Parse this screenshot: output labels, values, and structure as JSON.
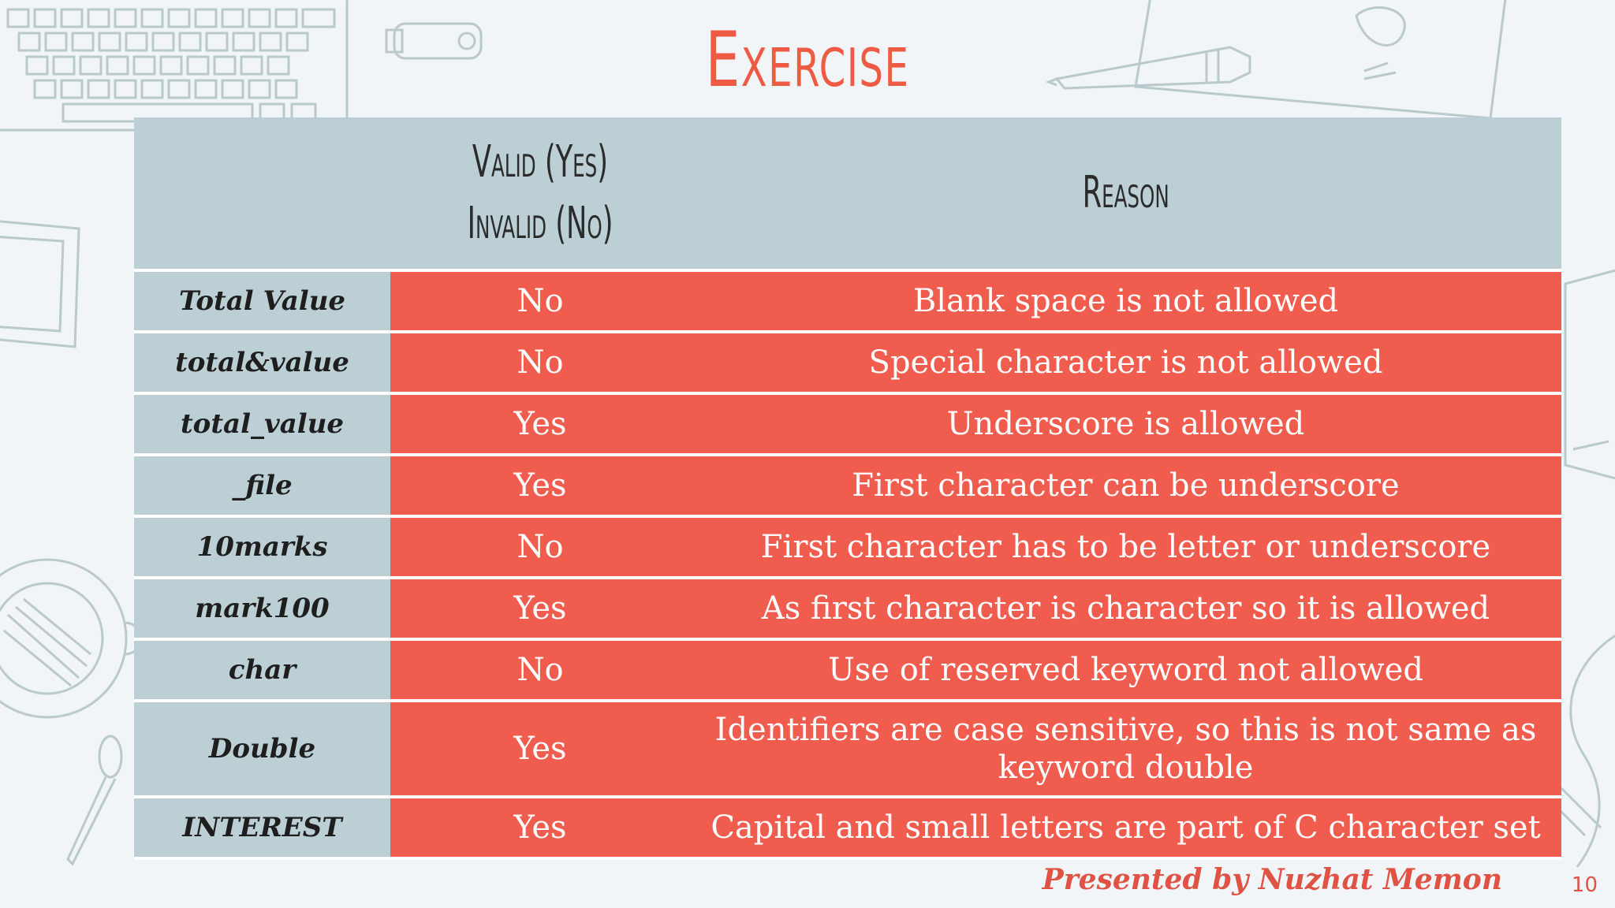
{
  "title": "Exercise",
  "table": {
    "header": {
      "col1": "",
      "col2_line1": "Valid (Yes)",
      "col2_line2": "Invalid (No)",
      "col3": "Reason"
    },
    "rows": [
      {
        "name": "Total  Value",
        "valid": "No",
        "reason": "Blank space  is not allowed"
      },
      {
        "name": "total&value",
        "valid": "No",
        "reason": "Special character is not allowed"
      },
      {
        "name": "total_value",
        "valid": "Yes",
        "reason": "Underscore is allowed"
      },
      {
        "name": "_file",
        "valid": "Yes",
        "reason": "First character can be underscore"
      },
      {
        "name": "10marks",
        "valid": "No",
        "reason": "First character has to be letter or underscore"
      },
      {
        "name": "mark100",
        "valid": "Yes",
        "reason": "As first character  is character so it is allowed"
      },
      {
        "name": "char",
        "valid": "No",
        "reason": "Use of reserved keyword not allowed"
      },
      {
        "name": "Double",
        "valid": "Yes",
        "reason_line1": "Identifiers are case sensitive,  so this is not same as",
        "reason_line2": "keyword  double"
      },
      {
        "name": "INTEREST",
        "valid": "Yes",
        "reason": "Capital and small letters are part of C character set"
      }
    ]
  },
  "footer": "Presented by Nuzhat Memon",
  "page_number": "10",
  "colors": {
    "accent": "#ee5a44",
    "cell_red": "#f05c4e",
    "cell_blue_gray": "#bccfd4",
    "background": "#f1f5f7"
  }
}
